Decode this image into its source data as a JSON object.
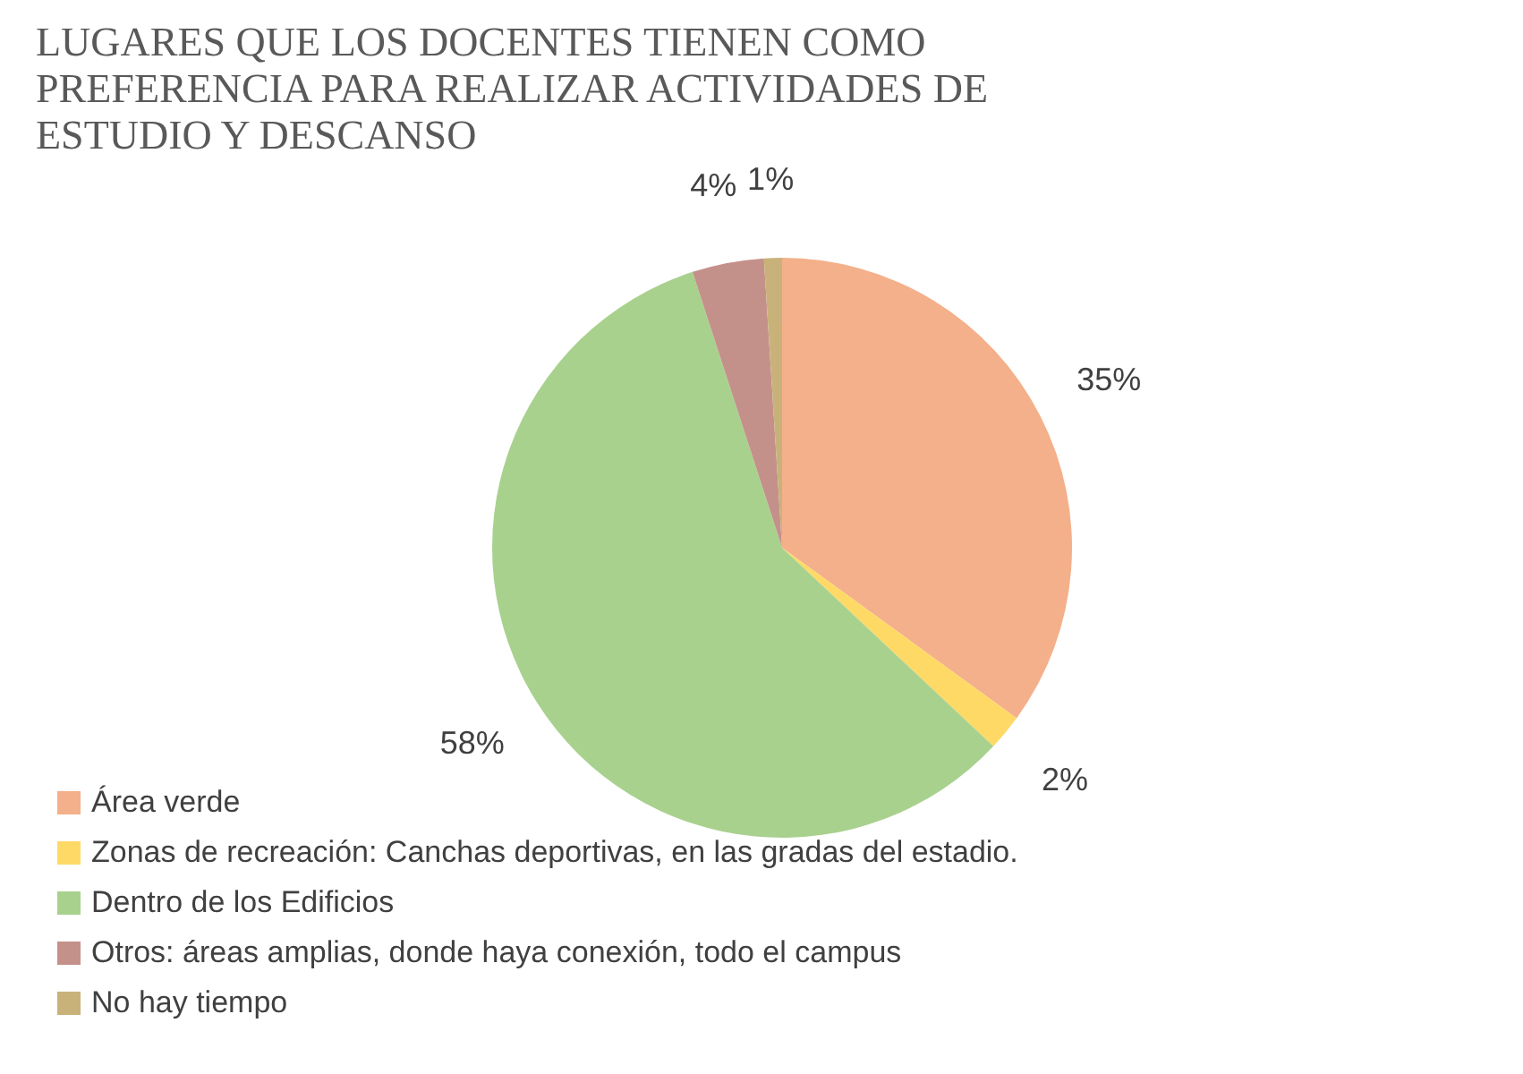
{
  "chart_data": {
    "type": "pie",
    "title": "LUGARES QUE LOS DOCENTES TIENEN COMO PREFERENCIA PARA REALIZAR ACTIVIDADES DE ESTUDIO Y DESCANSO",
    "categories": [
      "Área verde",
      "Zonas de recreación: Canchas deportivas, en las gradas del estadio.",
      "Dentro de los Edificios",
      "Otros: áreas amplias, donde haya conexión, todo el campus",
      "No hay tiempo"
    ],
    "values": [
      35,
      2,
      58,
      4,
      1
    ],
    "value_labels": [
      "35%",
      "2%",
      "58%",
      "4%",
      "1%"
    ],
    "colors": [
      "#f4b08a",
      "#ffd966",
      "#a9d18e",
      "#c4918a",
      "#c9b27a"
    ],
    "legend": "bottom left"
  }
}
